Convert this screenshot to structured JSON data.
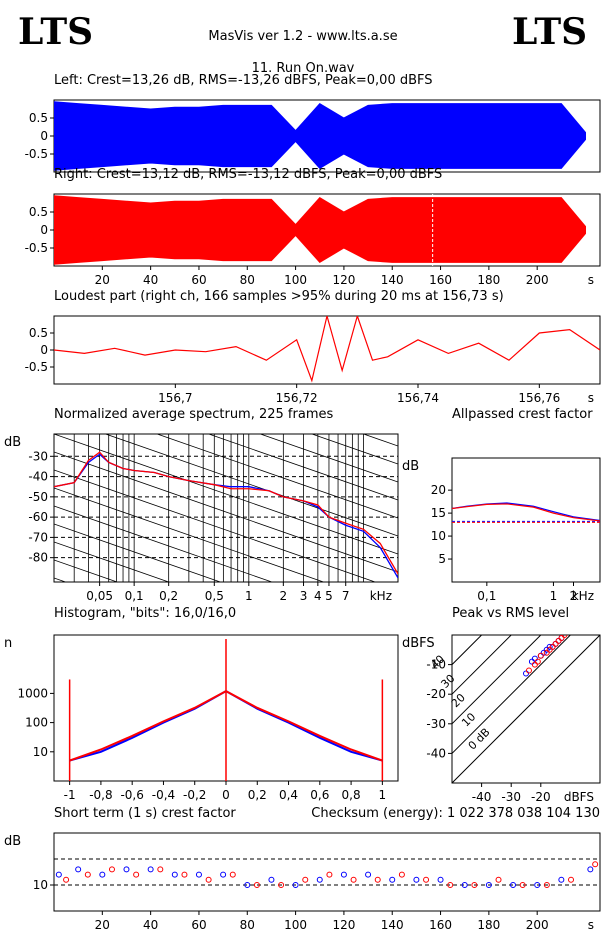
{
  "header": {
    "logo_left": "LTS",
    "logo_right": "LTS",
    "app_title": "MasVis ver 1.2 - www.lts.a.se",
    "file_title": "11. Run On.wav"
  },
  "colors": {
    "left": "#0000ff",
    "right": "#ff0000",
    "axis": "#000000"
  },
  "chart_data": [
    {
      "id": "waveform-left",
      "type": "area",
      "title": "Left: Crest=13,26 dB, RMS=-13,26 dBFS, Peak=0,00 dBFS",
      "yticks": [
        "0.5",
        "0",
        "-0.5"
      ],
      "ylim": [
        -1,
        1
      ],
      "series": [
        {
          "color": "#0000ff",
          "x": [
            0,
            10,
            20,
            30,
            40,
            50,
            60,
            70,
            80,
            90,
            100,
            110,
            120,
            130,
            140,
            150,
            160,
            170,
            180,
            190,
            200,
            210,
            220
          ],
          "values": [
            0.95,
            0.9,
            0.85,
            0.8,
            0.75,
            0.8,
            0.8,
            0.85,
            0.85,
            0.85,
            0.15,
            0.9,
            0.5,
            0.85,
            0.9,
            0.9,
            0.9,
            0.9,
            0.9,
            0.9,
            0.9,
            0.9,
            0.1
          ]
        }
      ]
    },
    {
      "id": "waveform-right",
      "type": "area",
      "title": "Right: Crest=13,12 dB, RMS=-13,12 dBFS, Peak=0,00 dBFS",
      "yticks": [
        "0.5",
        "0",
        "-0.5"
      ],
      "ylim": [
        -1,
        1
      ],
      "xticks": [
        "20",
        "40",
        "60",
        "80",
        "100",
        "120",
        "140",
        "160",
        "180",
        "200"
      ],
      "xunit": "s",
      "xlim": [
        0,
        226
      ],
      "series": [
        {
          "color": "#ff0000",
          "x": [
            0,
            10,
            20,
            30,
            40,
            50,
            60,
            70,
            80,
            90,
            100,
            110,
            120,
            130,
            140,
            150,
            160,
            170,
            180,
            190,
            200,
            210,
            220
          ],
          "values": [
            0.95,
            0.9,
            0.85,
            0.8,
            0.75,
            0.8,
            0.8,
            0.85,
            0.85,
            0.85,
            0.15,
            0.9,
            0.5,
            0.85,
            0.9,
            0.9,
            0.9,
            0.9,
            0.9,
            0.9,
            0.9,
            0.9,
            0.1
          ]
        }
      ]
    },
    {
      "id": "loudest-part",
      "type": "line",
      "title": "Loudest part (right ch, 166 samples >95% during 20 ms at 156,73 s)",
      "yticks": [
        "0.5",
        "0",
        "-0.5"
      ],
      "ylim": [
        -1,
        1
      ],
      "xticks": [
        "156,7",
        "156,72",
        "156,74",
        "156,76"
      ],
      "xunit": "s",
      "xlim": [
        156.68,
        156.77
      ],
      "series": [
        {
          "color": "#ff0000",
          "x": [
            156.68,
            156.685,
            156.69,
            156.695,
            156.7,
            156.705,
            156.71,
            156.715,
            156.72,
            156.7225,
            156.725,
            156.7275,
            156.73,
            156.7325,
            156.735,
            156.74,
            156.745,
            156.75,
            156.755,
            156.76,
            156.765,
            156.77
          ],
          "values": [
            0.0,
            -0.1,
            0.05,
            -0.15,
            0.0,
            -0.05,
            0.1,
            -0.3,
            0.3,
            -0.9,
            1.0,
            -0.6,
            1.0,
            -0.3,
            -0.2,
            0.3,
            -0.1,
            0.2,
            -0.3,
            0.5,
            0.6,
            0.0
          ]
        }
      ]
    },
    {
      "id": "spectrum",
      "type": "line",
      "title": "Normalized average spectrum, 225 frames",
      "ylabel": "dB",
      "yticks": [
        "-30",
        "-40",
        "-50",
        "-60",
        "-70",
        "-80"
      ],
      "ylim": [
        -92,
        -19
      ],
      "xticks": [
        "0,05",
        "0,1",
        "0,2",
        "0,5",
        "1",
        "2",
        "3",
        "4",
        "5",
        "7"
      ],
      "xunit": "kHz",
      "xscale": "log",
      "xlim": [
        0.02,
        20
      ],
      "series": [
        {
          "color": "#0000ff",
          "x": [
            0.02,
            0.03,
            0.04,
            0.05,
            0.06,
            0.08,
            0.1,
            0.15,
            0.2,
            0.3,
            0.5,
            0.7,
            1,
            1.5,
            2,
            3,
            4,
            5,
            7,
            10,
            14,
            20
          ],
          "values": [
            -45,
            -43,
            -33,
            -29,
            -33,
            -36,
            -37,
            -38,
            -40,
            -42,
            -44,
            -45,
            -45,
            -47,
            -50,
            -52,
            -55,
            -60,
            -64,
            -67,
            -75,
            -90
          ]
        },
        {
          "color": "#ff0000",
          "x": [
            0.02,
            0.03,
            0.04,
            0.05,
            0.06,
            0.08,
            0.1,
            0.15,
            0.2,
            0.3,
            0.5,
            0.7,
            1,
            1.5,
            2,
            3,
            4,
            5,
            7,
            10,
            14,
            20
          ],
          "values": [
            -45,
            -43,
            -32,
            -28,
            -33,
            -36,
            -37,
            -38,
            -40,
            -42,
            -44,
            -46,
            -46,
            -47,
            -50,
            -52,
            -54,
            -60,
            -63,
            -66,
            -73,
            -88
          ]
        }
      ]
    },
    {
      "id": "allpassed-crest",
      "type": "line",
      "title": "Allpassed crest factor",
      "ylabel": "dB",
      "yticks": [
        "20",
        "15",
        "10",
        "5"
      ],
      "ylim": [
        0,
        27
      ],
      "xticks": [
        "0,1",
        "1",
        "2"
      ],
      "xunit": "kHz",
      "xscale": "log",
      "xlim": [
        0.03,
        5
      ],
      "reference_db": 13.2,
      "series": [
        {
          "color": "#0000ff",
          "x": [
            0.03,
            0.05,
            0.1,
            0.2,
            0.5,
            1,
            2,
            5
          ],
          "values": [
            16.0,
            16.5,
            17.0,
            17.2,
            16.5,
            15.3,
            14.2,
            13.4
          ]
        },
        {
          "color": "#ff0000",
          "x": [
            0.03,
            0.05,
            0.1,
            0.2,
            0.5,
            1,
            2,
            5
          ],
          "values": [
            16.0,
            16.4,
            16.9,
            17.0,
            16.3,
            15.0,
            14.0,
            13.3
          ]
        }
      ]
    },
    {
      "id": "histogram",
      "type": "line",
      "title": "Histogram, \"bits\": 16,0/16,0",
      "ylabel": "n",
      "yticks": [
        "1000",
        "100",
        "10"
      ],
      "yscale": "log",
      "ylim": [
        1,
        100000
      ],
      "xticks": [
        "-1",
        "-0,8",
        "-0,6",
        "-0,4",
        "-0,2",
        "0",
        "0,2",
        "0,4",
        "0,6",
        "0,8",
        "1"
      ],
      "xlim": [
        -1.1,
        1.1
      ],
      "series": [
        {
          "color": "#0000ff",
          "x": [
            -1,
            -0.8,
            -0.6,
            -0.4,
            -0.2,
            0,
            0.2,
            0.4,
            0.6,
            0.8,
            1
          ],
          "values": [
            5,
            10,
            30,
            100,
            300,
            1200,
            300,
            100,
            30,
            10,
            5
          ]
        },
        {
          "color": "#ff0000",
          "x": [
            -1,
            -0.8,
            -0.6,
            -0.4,
            -0.2,
            0,
            0.2,
            0.4,
            0.6,
            0.8,
            1
          ],
          "values": [
            5,
            12,
            35,
            110,
            320,
            1200,
            320,
            110,
            35,
            12,
            5
          ]
        }
      ]
    },
    {
      "id": "peak-vs-rms",
      "type": "scatter",
      "title": "Peak vs RMS level",
      "ylabel": "dBFS",
      "yticks": [
        "-10",
        "-20",
        "-30",
        "-40"
      ],
      "ylim": [
        -50,
        0
      ],
      "xticks": [
        "-40",
        "-30",
        "-20"
      ],
      "xunit": "dBFS",
      "xlim": [
        -50,
        0
      ],
      "crest_lines": [
        "40",
        "30",
        "20",
        "10",
        "0 dB"
      ],
      "series": [
        {
          "color": "#0000ff",
          "x": [
            -25,
            -23,
            -22,
            -20,
            -19,
            -18,
            -17,
            -16,
            -15,
            -14,
            -13
          ],
          "values": [
            -13,
            -9,
            -8,
            -7,
            -6,
            -5,
            -4,
            -4,
            -3,
            -2,
            -1
          ]
        },
        {
          "color": "#ff0000",
          "x": [
            -24,
            -22,
            -21,
            -20,
            -18,
            -17,
            -16,
            -15,
            -14,
            -13,
            -12
          ],
          "values": [
            -12,
            -10,
            -9,
            -7,
            -6,
            -5,
            -4,
            -3,
            -2,
            -1,
            0
          ]
        }
      ]
    },
    {
      "id": "short-term-crest",
      "type": "scatter",
      "title": "Short term (1 s) crest factor",
      "checksum": "Checksum (energy):  1 022 378 038 104 130",
      "ylabel": "dB",
      "yticks": [
        "10"
      ],
      "ylim": [
        5,
        20
      ],
      "xticks": [
        "20",
        "40",
        "60",
        "80",
        "100",
        "120",
        "140",
        "160",
        "180",
        "200"
      ],
      "xunit": "s",
      "xlim": [
        0,
        226
      ],
      "series": [
        {
          "color": "#0000ff",
          "x": [
            2,
            10,
            20,
            30,
            40,
            50,
            60,
            70,
            80,
            90,
            100,
            110,
            120,
            130,
            140,
            150,
            160,
            170,
            180,
            190,
            200,
            210,
            222
          ],
          "values": [
            12,
            13,
            12,
            13,
            13,
            12,
            12,
            12,
            10,
            11,
            10,
            11,
            12,
            12,
            11,
            11,
            11,
            10,
            10,
            10,
            10,
            11,
            13
          ]
        },
        {
          "color": "#ff0000",
          "x": [
            5,
            14,
            24,
            34,
            44,
            54,
            64,
            74,
            84,
            94,
            104,
            114,
            124,
            134,
            144,
            154,
            164,
            174,
            184,
            194,
            204,
            214,
            224
          ],
          "values": [
            11,
            12,
            13,
            12,
            13,
            12,
            11,
            12,
            10,
            10,
            11,
            12,
            11,
            11,
            12,
            11,
            10,
            10,
            11,
            10,
            10,
            11,
            14
          ]
        }
      ]
    }
  ]
}
